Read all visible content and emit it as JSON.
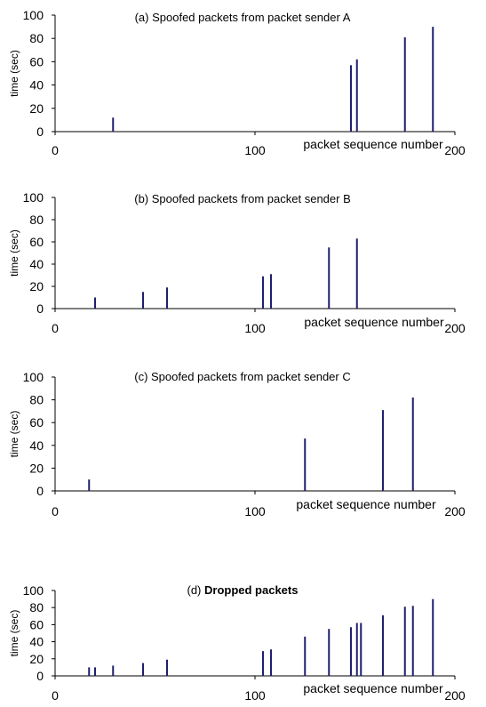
{
  "chart_data": [
    {
      "type": "bar",
      "title": "(a)  Spoofed packets from packet sender A",
      "title_bold": "",
      "xlabel": "packet sequence number",
      "ylabel": "time (sec)",
      "xlim": [
        0,
        200
      ],
      "ylim": [
        0,
        100
      ],
      "xticks": [
        "0",
        "100",
        "200"
      ],
      "yticks": [
        "0",
        "20",
        "40",
        "60",
        "80",
        "100"
      ],
      "bar_color": "#1f1f6e",
      "x": [
        29,
        148,
        151,
        175,
        189
      ],
      "values": [
        12,
        57,
        62,
        81,
        90
      ]
    },
    {
      "type": "bar",
      "title": "(b) Spoofed packets from packet sender B",
      "title_bold": "",
      "xlabel": "packet sequence number",
      "ylabel": "time (sec)",
      "xlim": [
        0,
        200
      ],
      "ylim": [
        0,
        100
      ],
      "xticks": [
        "0",
        "100",
        "200"
      ],
      "yticks": [
        "0",
        "20",
        "40",
        "60",
        "80",
        "100"
      ],
      "bar_color": "#1f1f6e",
      "x": [
        20,
        44,
        56,
        104,
        108,
        137,
        151
      ],
      "values": [
        10,
        15,
        19,
        29,
        31,
        55,
        63
      ]
    },
    {
      "type": "bar",
      "title": "(c) Spoofed packets from packet sender C",
      "title_bold": "",
      "xlabel": "packet sequence number",
      "ylabel": "time (sec)",
      "xlim": [
        0,
        200
      ],
      "ylim": [
        0,
        100
      ],
      "xticks": [
        "0",
        "100",
        "200"
      ],
      "yticks": [
        "0",
        "20",
        "40",
        "60",
        "80",
        "100"
      ],
      "bar_color": "#1f1f6e",
      "x": [
        17,
        125,
        164,
        179
      ],
      "values": [
        10,
        46,
        71,
        82
      ]
    },
    {
      "type": "bar",
      "title": "(d) ",
      "title_bold": "Dropped packets",
      "xlabel": "packet sequence number",
      "ylabel": "time (sec)",
      "xlim": [
        0,
        200
      ],
      "ylim": [
        0,
        100
      ],
      "xticks": [
        "0",
        "100",
        "200"
      ],
      "yticks": [
        "0",
        "20",
        "40",
        "60",
        "80",
        "100"
      ],
      "bar_color": "#1f1f6e",
      "x": [
        17,
        20,
        29,
        44,
        56,
        104,
        108,
        125,
        137,
        148,
        151,
        153,
        164,
        175,
        179,
        189
      ],
      "values": [
        10,
        10,
        12,
        15,
        19,
        29,
        31,
        46,
        55,
        57,
        62,
        62,
        71,
        81,
        82,
        90
      ]
    }
  ]
}
